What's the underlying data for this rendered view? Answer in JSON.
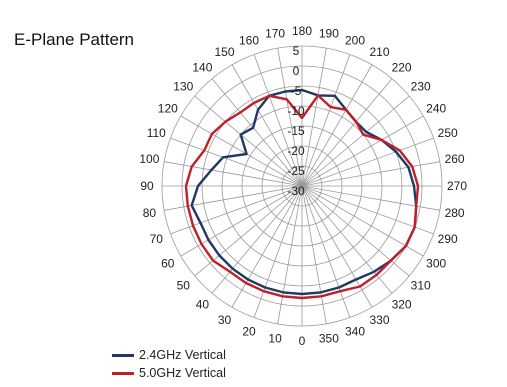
{
  "chart_data": {
    "type": "polar-line",
    "title": "E-Plane Pattern",
    "angle_ticks": [
      0,
      10,
      20,
      30,
      40,
      50,
      60,
      70,
      80,
      90,
      100,
      110,
      120,
      130,
      140,
      150,
      160,
      170,
      180,
      190,
      200,
      210,
      220,
      230,
      240,
      250,
      260,
      270,
      280,
      290,
      300,
      310,
      320,
      330,
      340,
      350
    ],
    "angle_tick_labels": [
      "0",
      "10",
      "20",
      "30",
      "40",
      "50",
      "60",
      "70",
      "80",
      "90",
      "100",
      "110",
      "120",
      "130",
      "140",
      "150",
      "160",
      "170",
      "180",
      "190",
      "200",
      "210",
      "220",
      "230",
      "240",
      "250",
      "260",
      "270",
      "280",
      "290",
      "300",
      "310",
      "320",
      "330",
      "340",
      "350"
    ],
    "radial_ticks": [
      5,
      0,
      -5,
      -10,
      -15,
      -20,
      -25,
      -30
    ],
    "radial_tick_labels": [
      "5",
      "0",
      "-5",
      "-10",
      "-15",
      "-20",
      "-25",
      "-30"
    ],
    "r_range": [
      -30,
      5
    ],
    "grid": true,
    "legend_position": "bottom-left",
    "series": [
      {
        "name": "2.4GHz Vertical",
        "color": "#1f3864",
        "angles": [
          0,
          10,
          20,
          30,
          40,
          50,
          60,
          70,
          80,
          90,
          100,
          110,
          120,
          130,
          140,
          150,
          160,
          170,
          180,
          190,
          200,
          210,
          220,
          230,
          240,
          250,
          260,
          270,
          280,
          290,
          300,
          310,
          320,
          330,
          340,
          350
        ],
        "values": [
          -3,
          -3,
          -3,
          -3,
          -3,
          -3,
          -3,
          -3,
          -2,
          -4,
          -7,
          -9,
          -14,
          -10,
          -11,
          -8,
          -6,
          -6,
          -6,
          -7,
          -6,
          -8,
          -9,
          -9,
          -7,
          -5,
          -3,
          -2,
          -1,
          0,
          0,
          -1,
          -2,
          -3,
          -3,
          -3
        ]
      },
      {
        "name": "5.0GHz Vertical",
        "color": "#c0202a",
        "angles": [
          0,
          10,
          20,
          30,
          40,
          50,
          60,
          70,
          80,
          90,
          100,
          110,
          120,
          130,
          140,
          150,
          160,
          170,
          180,
          190,
          200,
          210,
          220,
          230,
          240,
          250,
          260,
          270,
          280,
          290,
          300,
          310,
          320,
          330,
          340,
          350
        ],
        "values": [
          -2,
          -2,
          -2,
          -2,
          -2,
          -1,
          -1,
          -1,
          -1,
          -1,
          -2,
          -4,
          -4,
          -5,
          -6,
          -6,
          -6,
          -8,
          -13,
          -7,
          -9,
          -8,
          -9,
          -10,
          -7,
          -4,
          -2,
          -1,
          -1,
          0,
          0,
          -1,
          -1,
          -1,
          -2,
          -2
        ]
      }
    ]
  }
}
